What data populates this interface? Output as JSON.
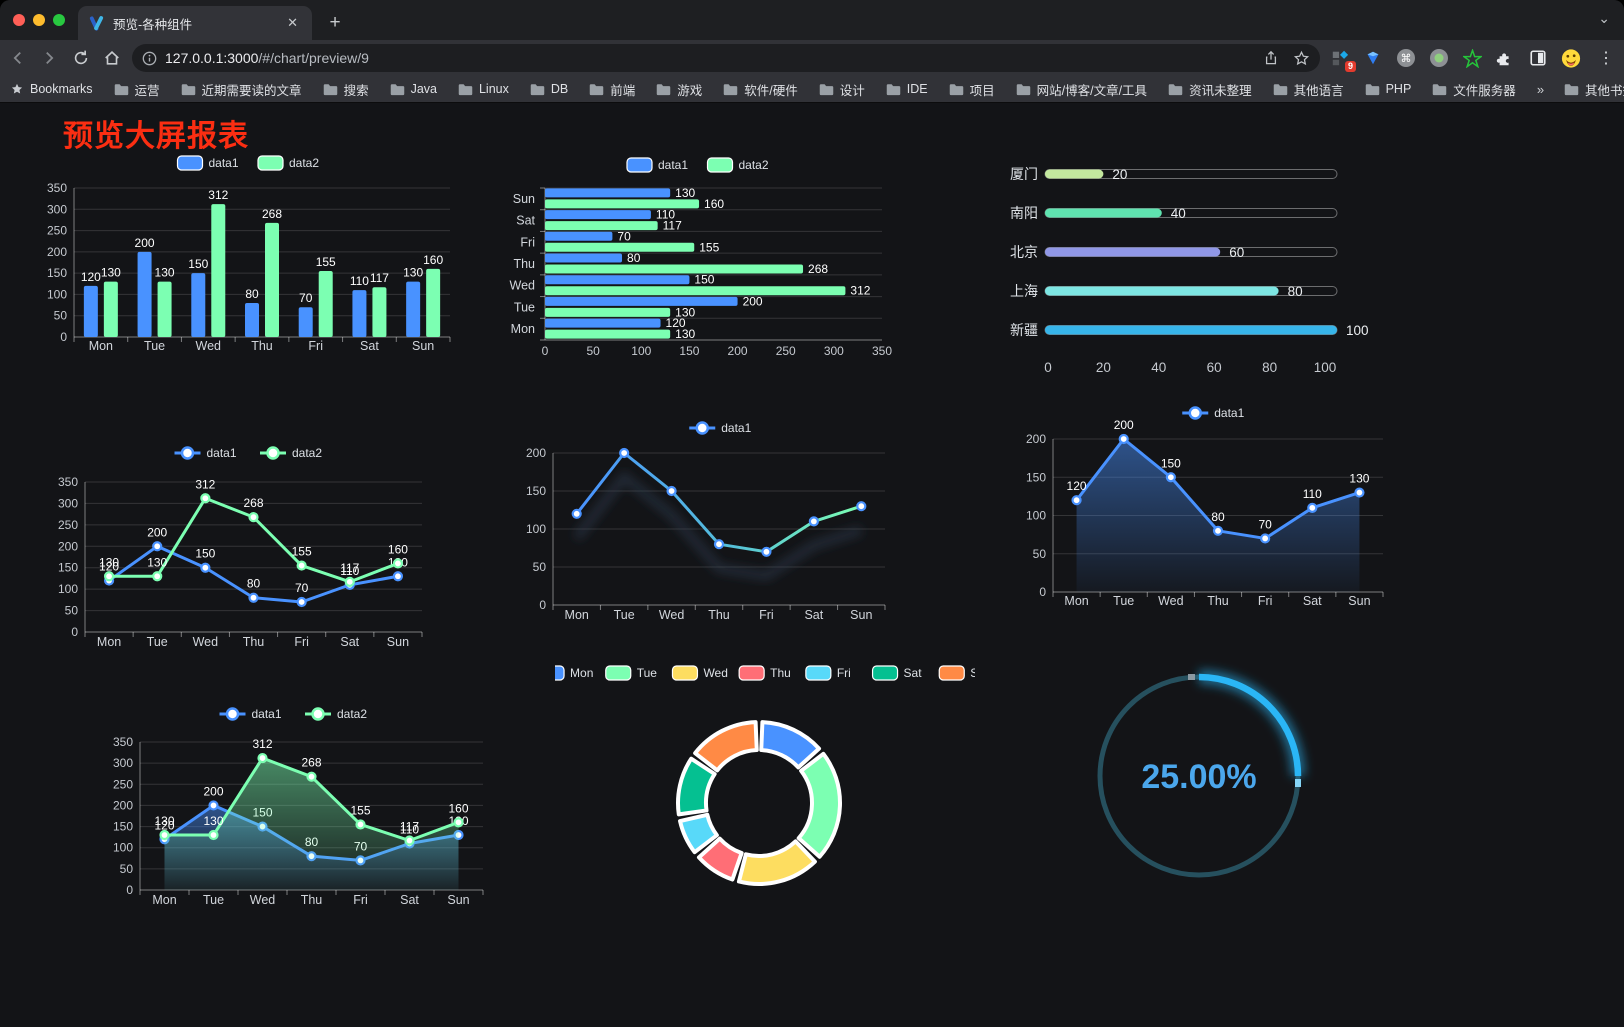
{
  "browser": {
    "tab_title": "预览-各种组件",
    "url": {
      "host": "127.0.0.1:3000",
      "path": "/#/chart/preview/9"
    },
    "extension_badge": "9",
    "icons": {
      "tab_close": "✕",
      "new_tab": "+",
      "tab_chevron": "⌄",
      "menu_dots": "⋮",
      "cmd": "⌘",
      "bookmarks_overflow": "»"
    },
    "bookmarks_label": "Bookmarks",
    "bookmarks": [
      "运营",
      "近期需要读的文章",
      "搜索",
      "Java",
      "Linux",
      "DB",
      "前端",
      "游戏",
      "软件/硬件",
      "设计",
      "IDE",
      "项目",
      "网站/博客/文章/工具",
      "资讯未整理",
      "其他语言",
      "PHP",
      "文件服务器"
    ],
    "other_bookmarks": "其他书签"
  },
  "page": {
    "title": "预览大屏报表",
    "title_color": "#fb2e12"
  },
  "chart_data": [
    {
      "id": "grouped-bar",
      "type": "bar",
      "title": "",
      "categories": [
        "Mon",
        "Tue",
        "Wed",
        "Thu",
        "Fri",
        "Sat",
        "Sun"
      ],
      "series": [
        {
          "name": "data1",
          "color": "#4992ff",
          "values": [
            120,
            200,
            150,
            80,
            70,
            110,
            130
          ]
        },
        {
          "name": "data2",
          "color": "#7cffb2",
          "values": [
            130,
            130,
            312,
            268,
            155,
            117,
            160
          ]
        }
      ],
      "ylim": [
        0,
        350
      ],
      "ytick_step": 50,
      "value_labels": true,
      "legend_position": "top",
      "grid": true
    },
    {
      "id": "horizontal-bar",
      "type": "hbar",
      "categories": [
        "Mon",
        "Tue",
        "Wed",
        "Thu",
        "Fri",
        "Sat",
        "Sun"
      ],
      "display_order_top_to_bottom": [
        "Sun",
        "Sat",
        "Fri",
        "Thu",
        "Wed",
        "Tue",
        "Mon"
      ],
      "series": [
        {
          "name": "data1",
          "color": "#4992ff",
          "values": [
            120,
            200,
            150,
            80,
            70,
            110,
            130
          ]
        },
        {
          "name": "data2",
          "color": "#7cffb2",
          "values": [
            130,
            130,
            312,
            268,
            155,
            117,
            160
          ]
        }
      ],
      "xlim": [
        0,
        350
      ],
      "xtick_step": 50,
      "value_labels": true,
      "legend_position": "top",
      "grid": true
    },
    {
      "id": "progress-bars",
      "type": "progress",
      "rows": [
        {
          "label": "厦门",
          "value": 20,
          "color": "#c3e89e"
        },
        {
          "label": "南阳",
          "value": 40,
          "color": "#5fe3b0"
        },
        {
          "label": "北京",
          "value": 60,
          "color": "#9097e6"
        },
        {
          "label": "上海",
          "value": 80,
          "color": "#7de6e3"
        },
        {
          "label": "新疆",
          "value": 100,
          "color": "#37b5ea"
        }
      ],
      "xlim": [
        0,
        100
      ],
      "xticks": [
        0,
        20,
        40,
        60,
        80,
        100
      ]
    },
    {
      "id": "line-two-series",
      "type": "line",
      "categories": [
        "Mon",
        "Tue",
        "Wed",
        "Thu",
        "Fri",
        "Sat",
        "Sun"
      ],
      "series": [
        {
          "name": "data1",
          "color": "#4992ff",
          "values": [
            120,
            200,
            150,
            80,
            70,
            110,
            130
          ]
        },
        {
          "name": "data2",
          "color": "#7cffb2",
          "values": [
            130,
            130,
            312,
            268,
            155,
            117,
            160
          ]
        }
      ],
      "ylim": [
        0,
        350
      ],
      "ytick_step": 50,
      "value_labels": true,
      "legend_position": "top",
      "grid": true
    },
    {
      "id": "gradient-line",
      "type": "line",
      "categories": [
        "Mon",
        "Tue",
        "Wed",
        "Thu",
        "Fri",
        "Sat",
        "Sun"
      ],
      "series": [
        {
          "name": "data1",
          "color": "#4992ff",
          "color_end": "#7cffb2",
          "values": [
            120,
            200,
            150,
            80,
            70,
            110,
            130
          ]
        }
      ],
      "ylim": [
        0,
        200
      ],
      "ytick_step": 50,
      "value_labels": false,
      "shadow": true,
      "legend_position": "top",
      "grid": true
    },
    {
      "id": "area-single",
      "type": "area",
      "categories": [
        "Mon",
        "Tue",
        "Wed",
        "Thu",
        "Fri",
        "Sat",
        "Sun"
      ],
      "series": [
        {
          "name": "data1",
          "color": "#4992ff",
          "values": [
            120,
            200,
            150,
            80,
            70,
            110,
            130
          ]
        }
      ],
      "ylim": [
        0,
        200
      ],
      "ytick_step": 50,
      "value_labels": true,
      "legend_position": "top",
      "grid": true
    },
    {
      "id": "area-two-series",
      "type": "area",
      "categories": [
        "Mon",
        "Tue",
        "Wed",
        "Thu",
        "Fri",
        "Sat",
        "Sun"
      ],
      "series": [
        {
          "name": "data1",
          "color": "#4992ff",
          "values": [
            120,
            200,
            150,
            80,
            70,
            110,
            130
          ]
        },
        {
          "name": "data2",
          "color": "#7cffb2",
          "values": [
            130,
            130,
            312,
            268,
            155,
            117,
            160
          ]
        }
      ],
      "ylim": [
        0,
        350
      ],
      "ytick_step": 50,
      "value_labels": true,
      "legend_position": "top",
      "grid": true
    },
    {
      "id": "donut",
      "type": "pie",
      "categories": [
        "Mon",
        "Tue",
        "Wed",
        "Thu",
        "Fri",
        "Sat",
        "Sun"
      ],
      "values": [
        120,
        200,
        150,
        80,
        70,
        110,
        130
      ],
      "colors": [
        "#4992ff",
        "#7cffb2",
        "#fddd60",
        "#ff6e76",
        "#58d9f9",
        "#05c091",
        "#ff8a45"
      ],
      "legend_position": "top",
      "ring": true
    },
    {
      "id": "gauge",
      "type": "gauge",
      "value": 25,
      "label": "25.00%",
      "color": "#2ab6f6",
      "track_color": "#26505e",
      "text_color": "#4ba7ec"
    }
  ]
}
